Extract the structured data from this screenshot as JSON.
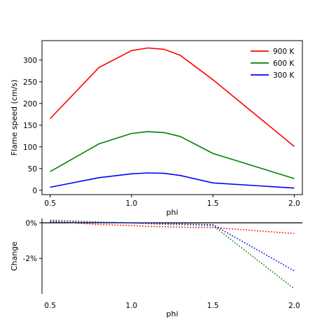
{
  "chart_data": [
    {
      "type": "line",
      "title": "",
      "xlabel": "phi",
      "ylabel": "Flame speed (cm/s)",
      "xlim": [
        0.45,
        2.05
      ],
      "ylim": [
        -10,
        345
      ],
      "xticks": [
        0.5,
        1.0,
        1.5,
        2.0
      ],
      "xtick_labels": [
        "0.5",
        "1.0",
        "1.5",
        "2.0"
      ],
      "yticks": [
        0,
        50,
        100,
        150,
        200,
        250,
        300
      ],
      "ytick_labels": [
        "0",
        "50",
        "100",
        "150",
        "200",
        "250",
        "300"
      ],
      "grid": false,
      "legend_position": "top-right",
      "x": [
        0.5,
        0.8,
        1.0,
        1.1,
        1.2,
        1.3,
        1.5,
        2.0
      ],
      "series": [
        {
          "name": "900 K",
          "color": "#ff0000",
          "values": [
            165,
            283,
            322,
            328,
            325,
            311,
            255,
            101
          ]
        },
        {
          "name": "600 K",
          "color": "#008000",
          "values": [
            43,
            107,
            131,
            135,
            133,
            124,
            85,
            27
          ]
        },
        {
          "name": "300 K",
          "color": "#0000ff",
          "values": [
            7,
            29,
            38,
            40,
            39,
            34,
            17,
            5
          ]
        }
      ]
    },
    {
      "type": "line",
      "title": "",
      "xlabel": "phi",
      "ylabel": "Change",
      "xlim": [
        0.45,
        2.05
      ],
      "ylim": [
        -4.0,
        0.25
      ],
      "xticks": [
        0.5,
        1.0,
        1.5,
        2.0
      ],
      "xtick_labels": [
        "0.5",
        "1.0",
        "1.5",
        "2.0"
      ],
      "yticks": [
        0,
        -2
      ],
      "ytick_labels": [
        "0%",
        "-2%"
      ],
      "grid": false,
      "reference_line_y": 0,
      "line_style": "dotted",
      "x": [
        0.5,
        0.8,
        1.0,
        1.1,
        1.2,
        1.3,
        1.5,
        2.0
      ],
      "series": [
        {
          "color": "#ff0000",
          "values": [
            0.1,
            -0.1,
            -0.15,
            -0.2,
            -0.22,
            -0.24,
            -0.26,
            -0.6
          ]
        },
        {
          "color": "#008000",
          "values": [
            0.15,
            0.05,
            0.0,
            -0.05,
            -0.08,
            -0.1,
            -0.15,
            -3.7
          ]
        },
        {
          "color": "#0000ff",
          "values": [
            0.05,
            0.02,
            0.0,
            -0.02,
            -0.05,
            -0.06,
            -0.1,
            -2.7
          ]
        }
      ]
    }
  ]
}
